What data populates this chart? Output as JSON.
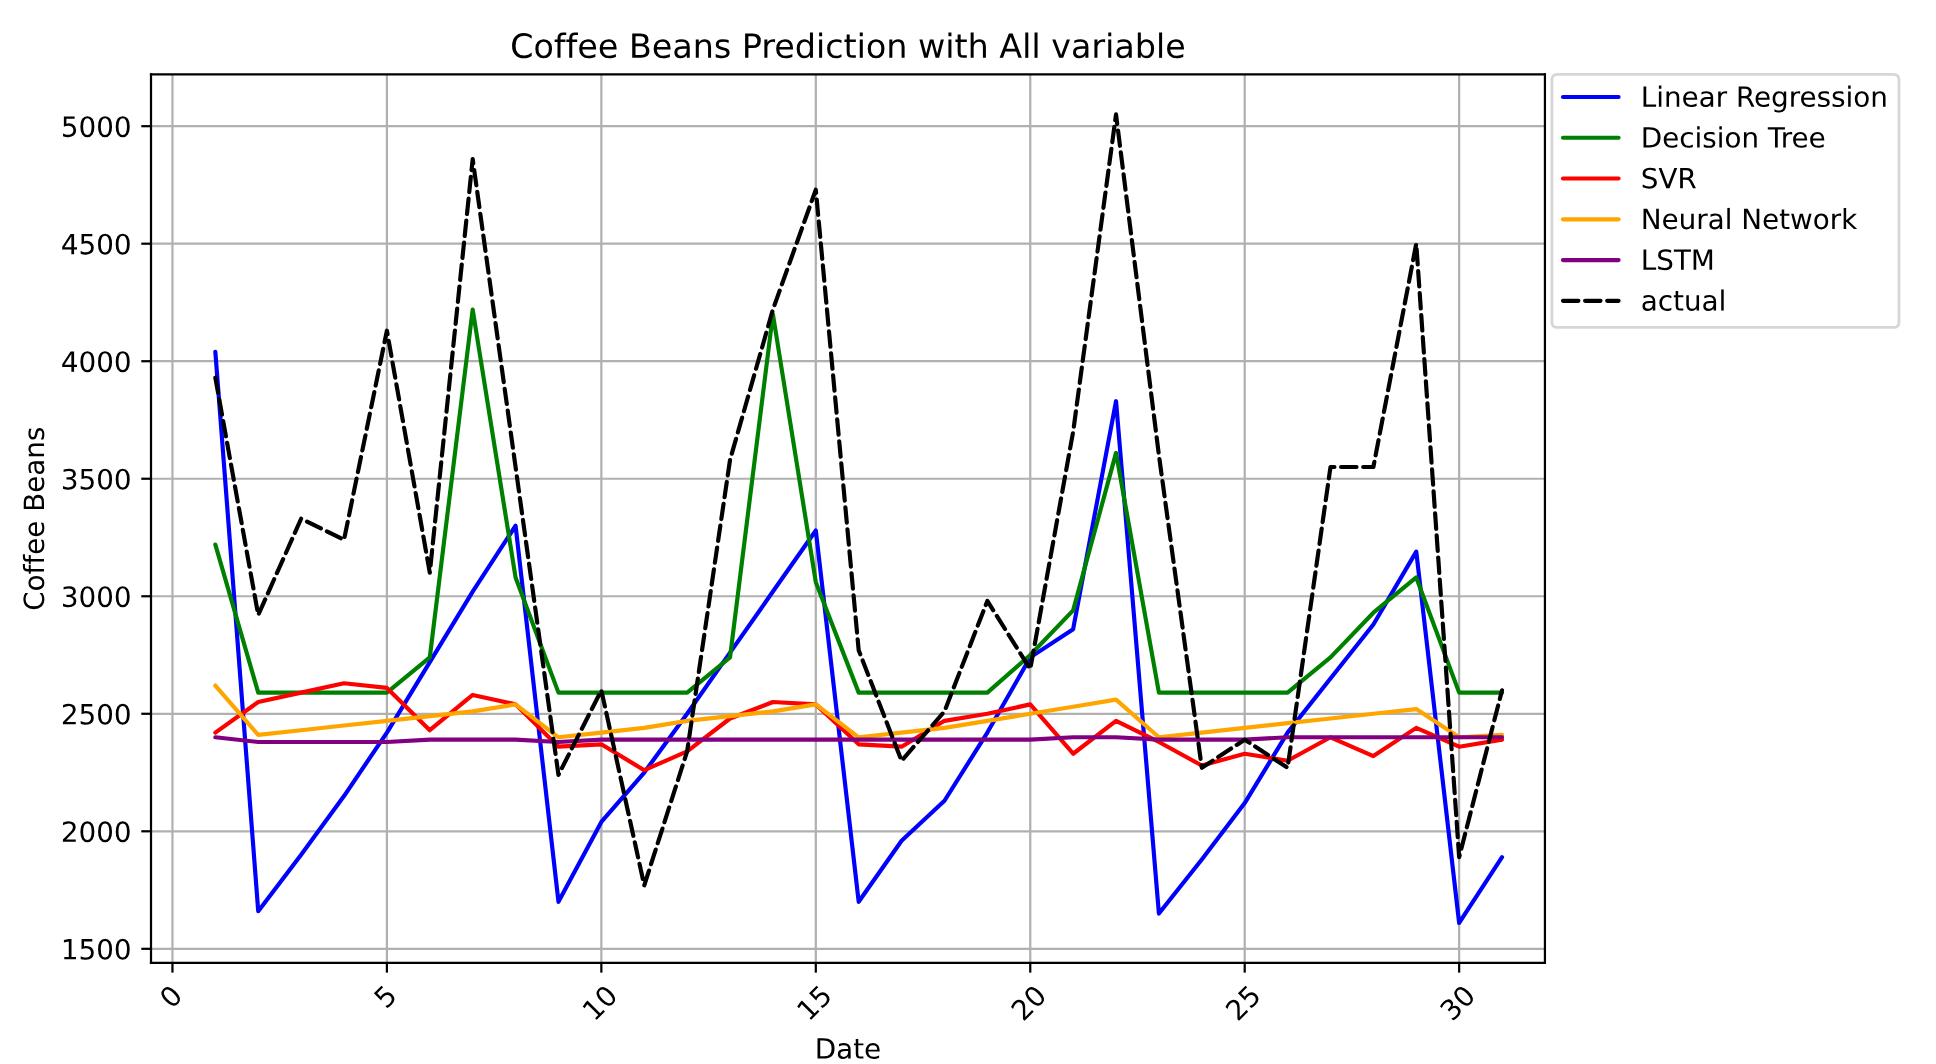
{
  "chart_data": {
    "type": "line",
    "title": "Coffee Beans Prediction with All variable",
    "xlabel": "Date",
    "ylabel": "Coffee Beans",
    "x": [
      1,
      2,
      3,
      4,
      5,
      6,
      7,
      8,
      9,
      10,
      11,
      12,
      13,
      14,
      15,
      16,
      17,
      18,
      19,
      20,
      21,
      22,
      23,
      24,
      25,
      26,
      27,
      28,
      29,
      30,
      31
    ],
    "series": [
      {
        "name": "Linear Regression",
        "color": "#0000ff",
        "line_style": "solid",
        "values": [
          4040,
          1660,
          1900,
          2150,
          2420,
          2720,
          3020,
          3300,
          1700,
          2040,
          2250,
          2500,
          2760,
          3020,
          3280,
          1700,
          1960,
          2130,
          2420,
          2740,
          2860,
          3830,
          1650,
          1880,
          2120,
          2420,
          2650,
          2880,
          3190,
          1610,
          1890
        ]
      },
      {
        "name": "Decision Tree",
        "color": "#008000",
        "line_style": "solid",
        "values": [
          3220,
          2590,
          2590,
          2590,
          2590,
          2740,
          4220,
          3080,
          2590,
          2590,
          2590,
          2590,
          2740,
          4200,
          3060,
          2590,
          2590,
          2590,
          2590,
          2750,
          2940,
          3610,
          2590,
          2590,
          2590,
          2590,
          2740,
          2930,
          3080,
          2590,
          2590
        ]
      },
      {
        "name": "SVR",
        "color": "#ff0000",
        "line_style": "solid",
        "values": [
          2420,
          2550,
          2590,
          2630,
          2610,
          2430,
          2580,
          2540,
          2360,
          2370,
          2260,
          2340,
          2480,
          2550,
          2540,
          2370,
          2360,
          2470,
          2500,
          2540,
          2330,
          2470,
          2380,
          2280,
          2330,
          2300,
          2400,
          2320,
          2440,
          2360,
          2390
        ]
      },
      {
        "name": "Neural Network",
        "color": "#ffa500",
        "line_style": "solid",
        "values": [
          2620,
          2410,
          2430,
          2450,
          2470,
          2490,
          2510,
          2540,
          2400,
          2420,
          2440,
          2470,
          2490,
          2510,
          2540,
          2400,
          2420,
          2440,
          2470,
          2500,
          2530,
          2560,
          2400,
          2420,
          2440,
          2460,
          2480,
          2500,
          2520,
          2400,
          2410
        ]
      },
      {
        "name": "LSTM",
        "color": "#800080",
        "line_style": "solid",
        "values": [
          2400,
          2380,
          2380,
          2380,
          2380,
          2390,
          2390,
          2390,
          2380,
          2390,
          2390,
          2390,
          2390,
          2390,
          2390,
          2390,
          2390,
          2390,
          2390,
          2390,
          2400,
          2400,
          2390,
          2390,
          2390,
          2400,
          2400,
          2400,
          2400,
          2400,
          2400
        ]
      },
      {
        "name": "actual",
        "color": "#000000",
        "line_style": "dashed",
        "values": [
          3930,
          2920,
          3330,
          3240,
          4130,
          3100,
          4860,
          3550,
          2240,
          2600,
          1770,
          2340,
          3580,
          4220,
          4730,
          2770,
          2300,
          2510,
          2980,
          2690,
          3700,
          5050,
          3600,
          2270,
          2390,
          2270,
          3550,
          3550,
          4500,
          1890,
          2600
        ]
      }
    ],
    "xlim": [
      -0.5,
      32
    ],
    "xticks": [
      0,
      5,
      10,
      15,
      20,
      25,
      30
    ],
    "ylim": [
      1440,
      5220
    ],
    "yticks": [
      1500,
      2000,
      2500,
      3000,
      3500,
      4000,
      4500,
      5000
    ],
    "grid": true,
    "legend": "right"
  }
}
